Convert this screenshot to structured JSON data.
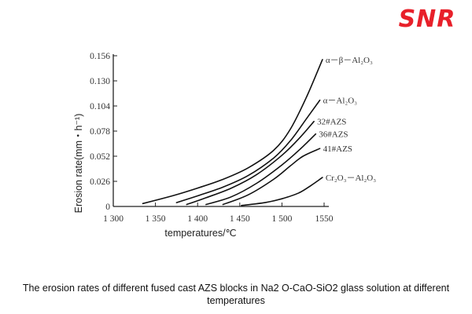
{
  "brand": {
    "logo_text": "SNR",
    "accent_color": "#e8202a"
  },
  "caption": "The erosion rates of different fused cast AZS blocks in Na2 O-CaO-SiO2 glass solution at different temperatures",
  "chart_data": {
    "type": "line",
    "title": "",
    "xlabel": "temperatures/℃",
    "ylabel": "Erosion rate(mm・h⁻¹)",
    "xlim": [
      1300,
      1560
    ],
    "ylim": [
      0,
      0.156
    ],
    "x_ticks": [
      1300,
      1350,
      1400,
      1450,
      1500,
      1550
    ],
    "x_tick_labels": [
      "1 300",
      "1 350",
      "1 400",
      "1 450",
      "1 500",
      "1550"
    ],
    "y_ticks": [
      0,
      0.026,
      0.052,
      0.078,
      0.104,
      0.13,
      0.156
    ],
    "y_tick_labels": [
      "0",
      "0.026",
      "0.052",
      "0.078",
      "0.104",
      "0.130",
      "0.156"
    ],
    "grid": false,
    "legend": "labels at line ends",
    "series": [
      {
        "name": "α－β－Al₂O₃",
        "x": [
          1335,
          1370,
          1400,
          1430,
          1460,
          1490,
          1510,
          1530,
          1548
        ],
        "y": [
          0.003,
          0.011,
          0.019,
          0.028,
          0.04,
          0.058,
          0.08,
          0.115,
          0.152
        ]
      },
      {
        "name": "α－Al₂O₃",
        "x": [
          1375,
          1400,
          1430,
          1460,
          1490,
          1510,
          1530,
          1545
        ],
        "y": [
          0.004,
          0.011,
          0.02,
          0.032,
          0.05,
          0.068,
          0.092,
          0.11
        ]
      },
      {
        "name": "32#AZS",
        "x": [
          1387,
          1410,
          1440,
          1470,
          1500,
          1520,
          1538
        ],
        "y": [
          0.002,
          0.009,
          0.019,
          0.033,
          0.053,
          0.07,
          0.088
        ]
      },
      {
        "name": "36#AZS",
        "x": [
          1410,
          1440,
          1470,
          1500,
          1520,
          1540
        ],
        "y": [
          0.002,
          0.01,
          0.024,
          0.043,
          0.058,
          0.075
        ]
      },
      {
        "name": "41#AZS",
        "x": [
          1430,
          1460,
          1490,
          1510,
          1525,
          1545
        ],
        "y": [
          0.002,
          0.012,
          0.028,
          0.042,
          0.052,
          0.06
        ]
      },
      {
        "name": "Cr₂O₃－Al₂O₃",
        "x": [
          1452,
          1480,
          1500,
          1520,
          1535,
          1548
        ],
        "y": [
          0.001,
          0.004,
          0.008,
          0.014,
          0.022,
          0.03
        ]
      }
    ]
  }
}
